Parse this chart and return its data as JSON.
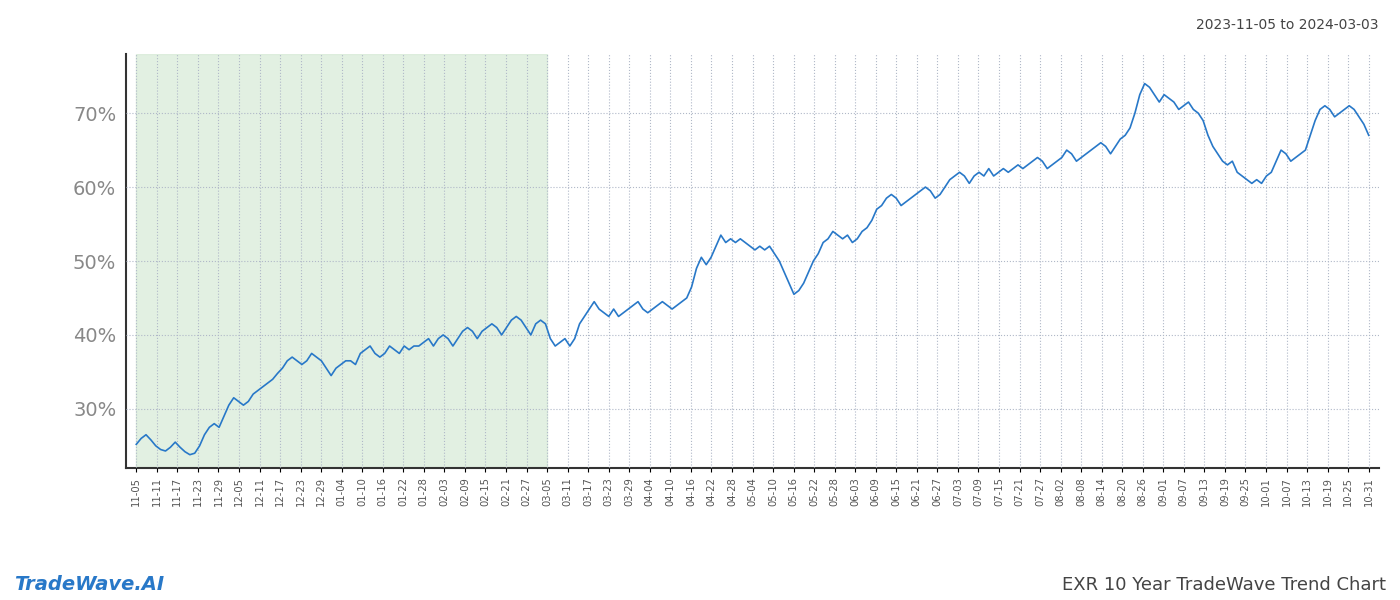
{
  "title_top_right": "2023-11-05 to 2024-03-03",
  "title_bottom_left": "TradeWave.AI",
  "title_bottom_right": "EXR 10 Year TradeWave Trend Chart",
  "line_color": "#2878c8",
  "line_width": 1.2,
  "shade_color": "#d6ead6",
  "shade_alpha": 0.7,
  "background_color": "#ffffff",
  "grid_color": "#b0b8c8",
  "grid_style": ":",
  "ylim": [
    22,
    78
  ],
  "yticks": [
    30,
    40,
    50,
    60,
    70
  ],
  "x_labels": [
    "11-05",
    "11-11",
    "11-17",
    "11-23",
    "11-29",
    "12-05",
    "12-11",
    "12-17",
    "12-23",
    "12-29",
    "01-04",
    "01-10",
    "01-16",
    "01-22",
    "01-28",
    "02-03",
    "02-09",
    "02-15",
    "02-21",
    "02-27",
    "03-05",
    "03-11",
    "03-17",
    "03-23",
    "03-29",
    "04-04",
    "04-10",
    "04-16",
    "04-22",
    "04-28",
    "05-04",
    "05-10",
    "05-16",
    "05-22",
    "05-28",
    "06-03",
    "06-09",
    "06-15",
    "06-21",
    "06-27",
    "07-03",
    "07-09",
    "07-15",
    "07-21",
    "07-27",
    "08-02",
    "08-08",
    "08-14",
    "08-20",
    "08-26",
    "09-01",
    "09-07",
    "09-13",
    "09-19",
    "09-25",
    "10-01",
    "10-07",
    "10-13",
    "10-19",
    "10-25",
    "10-31"
  ],
  "shade_end_label": "03-05",
  "detailed_values": [
    25.2,
    26.0,
    26.5,
    25.8,
    25.0,
    24.5,
    24.3,
    24.8,
    25.5,
    24.8,
    24.2,
    23.8,
    24.0,
    25.0,
    26.5,
    27.5,
    28.0,
    27.5,
    29.0,
    30.5,
    31.5,
    31.0,
    30.5,
    31.0,
    32.0,
    32.5,
    33.0,
    33.5,
    34.0,
    34.8,
    35.5,
    36.5,
    37.0,
    36.5,
    36.0,
    36.5,
    37.5,
    37.0,
    36.5,
    35.5,
    34.5,
    35.5,
    36.0,
    36.5,
    36.5,
    36.0,
    37.5,
    38.0,
    38.5,
    37.5,
    37.0,
    37.5,
    38.5,
    38.0,
    37.5,
    38.5,
    38.0,
    38.5,
    38.5,
    39.0,
    39.5,
    38.5,
    39.5,
    40.0,
    39.5,
    38.5,
    39.5,
    40.5,
    41.0,
    40.5,
    39.5,
    40.5,
    41.0,
    41.5,
    41.0,
    40.0,
    41.0,
    42.0,
    42.5,
    42.0,
    41.0,
    40.0,
    41.5,
    42.0,
    41.5,
    39.5,
    38.5,
    39.0,
    39.5,
    38.5,
    39.5,
    41.5,
    42.5,
    43.5,
    44.5,
    43.5,
    43.0,
    42.5,
    43.5,
    42.5,
    43.0,
    43.5,
    44.0,
    44.5,
    43.5,
    43.0,
    43.5,
    44.0,
    44.5,
    44.0,
    43.5,
    44.0,
    44.5,
    45.0,
    46.5,
    49.0,
    50.5,
    49.5,
    50.5,
    52.0,
    53.5,
    52.5,
    53.0,
    52.5,
    53.0,
    52.5,
    52.0,
    51.5,
    52.0,
    51.5,
    52.0,
    51.0,
    50.0,
    48.5,
    47.0,
    45.5,
    46.0,
    47.0,
    48.5,
    50.0,
    51.0,
    52.5,
    53.0,
    54.0,
    53.5,
    53.0,
    53.5,
    52.5,
    53.0,
    54.0,
    54.5,
    55.5,
    57.0,
    57.5,
    58.5,
    59.0,
    58.5,
    57.5,
    58.0,
    58.5,
    59.0,
    59.5,
    60.0,
    59.5,
    58.5,
    59.0,
    60.0,
    61.0,
    61.5,
    62.0,
    61.5,
    60.5,
    61.5,
    62.0,
    61.5,
    62.5,
    61.5,
    62.0,
    62.5,
    62.0,
    62.5,
    63.0,
    62.5,
    63.0,
    63.5,
    64.0,
    63.5,
    62.5,
    63.0,
    63.5,
    64.0,
    65.0,
    64.5,
    63.5,
    64.0,
    64.5,
    65.0,
    65.5,
    66.0,
    65.5,
    64.5,
    65.5,
    66.5,
    67.0,
    68.0,
    70.0,
    72.5,
    74.0,
    73.5,
    72.5,
    71.5,
    72.5,
    72.0,
    71.5,
    70.5,
    71.0,
    71.5,
    70.5,
    70.0,
    69.0,
    67.0,
    65.5,
    64.5,
    63.5,
    63.0,
    63.5,
    62.0,
    61.5,
    61.0,
    60.5,
    61.0,
    60.5,
    61.5,
    62.0,
    63.5,
    65.0,
    64.5,
    63.5,
    64.0,
    64.5,
    65.0,
    67.0,
    69.0,
    70.5,
    71.0,
    70.5,
    69.5,
    70.0,
    70.5,
    71.0,
    70.5,
    69.5,
    68.5,
    67.0
  ]
}
